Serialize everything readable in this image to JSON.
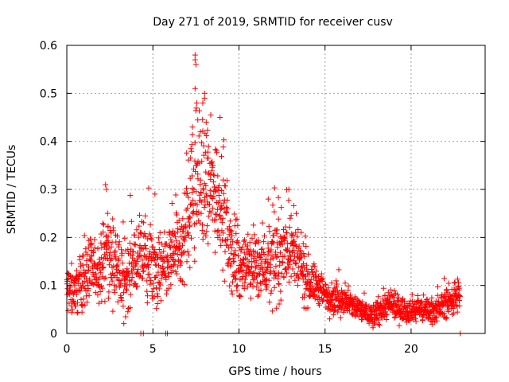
{
  "chart_data": {
    "type": "scatter",
    "title": "Day 271 of 2019, SRMTID for receiver cusv",
    "xlabel": "GPS time / hours",
    "ylabel": "SRMTID / TECUs",
    "xlim": [
      0,
      24.3
    ],
    "ylim": [
      0,
      0.6
    ],
    "x_ticks": [
      0,
      5,
      10,
      15,
      20
    ],
    "y_ticks": [
      0,
      0.1,
      0.2,
      0.3,
      0.4,
      0.5,
      0.6
    ],
    "x_tick_labels": [
      "0",
      "5",
      "10",
      "15",
      "20"
    ],
    "y_tick_labels": [
      "0",
      "0.1",
      "0.2",
      "0.3",
      "0.4",
      "0.5",
      "0.6"
    ],
    "grid": true,
    "marker": "+",
    "marker_color": "#ff0000",
    "series": [
      {
        "name": "SRMTID",
        "envelope": [
          [
            0.0,
            0.09,
            0.04
          ],
          [
            0.5,
            0.09,
            0.04
          ],
          [
            1.0,
            0.12,
            0.05
          ],
          [
            1.5,
            0.13,
            0.045
          ],
          [
            2.0,
            0.13,
            0.05
          ],
          [
            2.3,
            0.17,
            0.07
          ],
          [
            2.8,
            0.14,
            0.06
          ],
          [
            3.3,
            0.1,
            0.06
          ],
          [
            3.8,
            0.15,
            0.06
          ],
          [
            4.3,
            0.16,
            0.06
          ],
          [
            4.8,
            0.14,
            0.06
          ],
          [
            5.2,
            0.13,
            0.06
          ],
          [
            5.7,
            0.13,
            0.06
          ],
          [
            6.2,
            0.17,
            0.06
          ],
          [
            6.7,
            0.18,
            0.07
          ],
          [
            7.2,
            0.28,
            0.1
          ],
          [
            7.5,
            0.32,
            0.12
          ],
          [
            8.0,
            0.3,
            0.1
          ],
          [
            8.5,
            0.3,
            0.1
          ],
          [
            9.0,
            0.28,
            0.09
          ],
          [
            9.4,
            0.18,
            0.07
          ],
          [
            10.0,
            0.14,
            0.05
          ],
          [
            10.6,
            0.14,
            0.05
          ],
          [
            11.2,
            0.15,
            0.06
          ],
          [
            11.8,
            0.14,
            0.06
          ],
          [
            12.4,
            0.16,
            0.07
          ],
          [
            12.9,
            0.19,
            0.07
          ],
          [
            13.5,
            0.14,
            0.06
          ],
          [
            14.0,
            0.11,
            0.04
          ],
          [
            14.5,
            0.1,
            0.03
          ],
          [
            15.0,
            0.08,
            0.03
          ],
          [
            16.0,
            0.07,
            0.025
          ],
          [
            17.0,
            0.05,
            0.02
          ],
          [
            17.8,
            0.035,
            0.02
          ],
          [
            18.5,
            0.06,
            0.025
          ],
          [
            19.5,
            0.05,
            0.02
          ],
          [
            20.5,
            0.05,
            0.02
          ],
          [
            21.5,
            0.05,
            0.02
          ],
          [
            22.3,
            0.07,
            0.025
          ],
          [
            22.8,
            0.08,
            0.03
          ]
        ],
        "points_per_hour": 85,
        "x_range": [
          0.0,
          22.85
        ],
        "extra_points": [
          [
            7.45,
            0.58
          ],
          [
            7.45,
            0.57
          ],
          [
            7.5,
            0.56
          ],
          [
            7.45,
            0.51
          ],
          [
            8.0,
            0.5
          ],
          [
            8.0,
            0.49
          ],
          [
            7.9,
            0.48
          ],
          [
            7.55,
            0.48
          ],
          [
            8.9,
            0.45
          ],
          [
            8.1,
            0.44
          ],
          [
            7.3,
            0.43
          ],
          [
            2.25,
            0.31
          ],
          [
            2.3,
            0.3
          ],
          [
            12.9,
            0.3
          ],
          [
            11.7,
            0.28
          ],
          [
            4.3,
            0.0
          ],
          [
            4.45,
            0.0
          ],
          [
            5.75,
            0.0
          ],
          [
            5.85,
            0.0
          ],
          [
            22.85,
            0.0
          ]
        ]
      }
    ]
  }
}
